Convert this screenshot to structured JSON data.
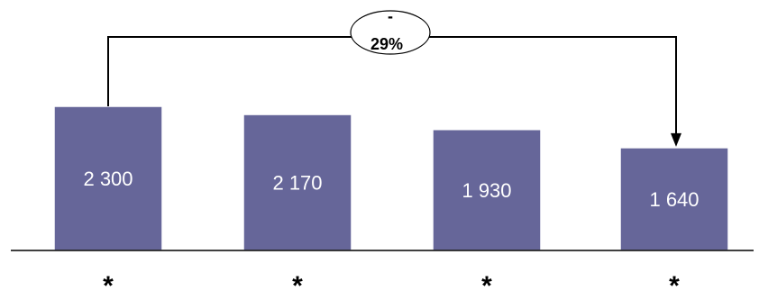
{
  "chart_data": {
    "type": "bar",
    "categories": [
      "*",
      "*",
      "*",
      "*"
    ],
    "values": [
      2300,
      2170,
      1930,
      1640
    ],
    "value_labels": [
      "2 300",
      "2 170",
      "1 930",
      "1 640"
    ],
    "title": "",
    "xlabel": "",
    "ylabel": "",
    "ylim": [
      0,
      2800
    ],
    "grid": false,
    "legend": "none",
    "bar_color": "#666699",
    "annotation": {
      "from_category": 0,
      "to_category": 3,
      "sign": "-",
      "label": "29%"
    }
  }
}
